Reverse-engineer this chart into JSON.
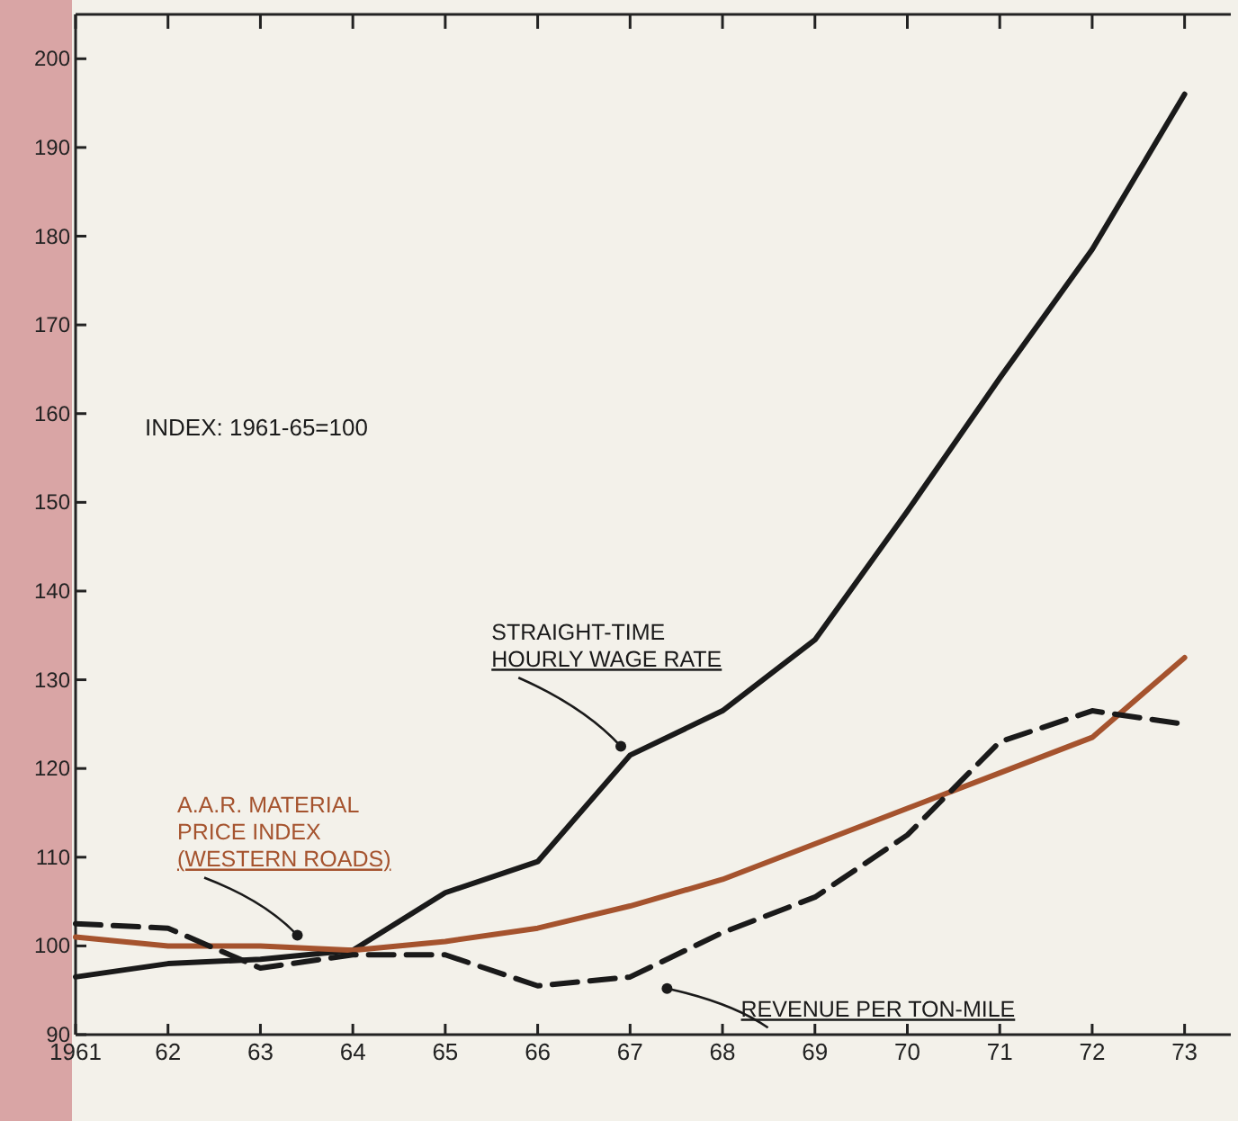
{
  "chart_data": {
    "type": "line",
    "x": [
      1961,
      1962,
      1963,
      1964,
      1965,
      1966,
      1967,
      1968,
      1969,
      1970,
      1971,
      1972,
      1973
    ],
    "series": [
      {
        "name": "STRAIGHT-TIME\nHOURLY WAGE RATE",
        "color": "#1a1a1a",
        "line_style": "solid",
        "values": [
          96.5,
          98,
          98.5,
          99.5,
          106,
          109.5,
          121.5,
          126.5,
          134.5,
          149,
          164,
          178.5,
          196
        ]
      },
      {
        "name": "A.A.R. MATERIAL\nPRICE INDEX\n(WESTERN ROADS)",
        "color": "#a5532e",
        "line_style": "solid",
        "values": [
          101,
          100,
          100,
          99.5,
          100.5,
          102,
          104.5,
          107.5,
          111.5,
          115.5,
          119.5,
          123.5,
          132.5
        ]
      },
      {
        "name": "REVENUE PER TON-MILE",
        "color": "#1a1a1a",
        "line_style": "dashed",
        "values": [
          102.5,
          102,
          97.5,
          99,
          99,
          95.5,
          96.5,
          101.5,
          105.5,
          112.5,
          123,
          126.5,
          125
        ]
      }
    ],
    "xlim": [
      1961,
      1973.5
    ],
    "xticks": [
      {
        "value": 1961,
        "label": "1961"
      },
      {
        "value": 1962,
        "label": "62"
      },
      {
        "value": 1963,
        "label": "63"
      },
      {
        "value": 1964,
        "label": "64"
      },
      {
        "value": 1965,
        "label": "65"
      },
      {
        "value": 1966,
        "label": "66"
      },
      {
        "value": 1967,
        "label": "67"
      },
      {
        "value": 1968,
        "label": "68"
      },
      {
        "value": 1969,
        "label": "69"
      },
      {
        "value": 1970,
        "label": "70"
      },
      {
        "value": 1971,
        "label": "71"
      },
      {
        "value": 1972,
        "label": "72"
      },
      {
        "value": 1973,
        "label": "73"
      }
    ],
    "ylim": [
      90,
      205
    ],
    "yticks": [
      90,
      100,
      110,
      120,
      130,
      140,
      150,
      160,
      170,
      180,
      190,
      200
    ],
    "annotations": [
      "INDEX: 1961-65=100"
    ],
    "grid": false,
    "marker": "none"
  }
}
